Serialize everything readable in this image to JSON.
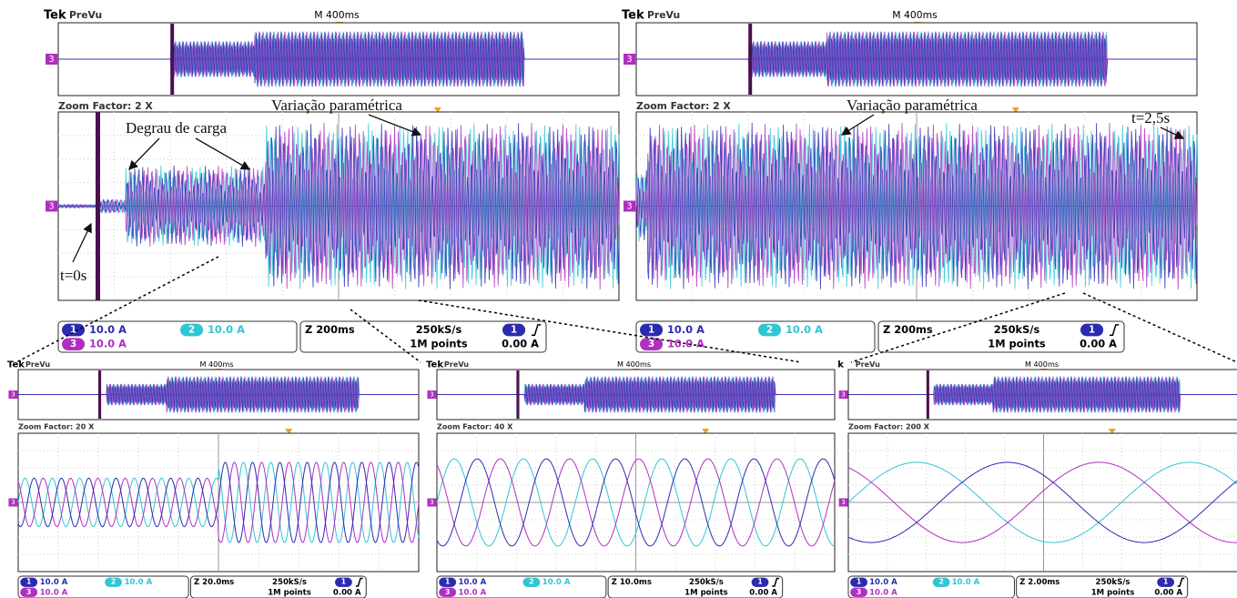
{
  "panels": [
    {
      "brand": "Tek",
      "preview": "PreVu",
      "timebase": "M 400ms",
      "zoom_factor": "Zoom Factor: 2 X",
      "channel_1_number": "1",
      "channel_1_scale": "10.0 A",
      "channel_2_number": "2",
      "channel_2_scale": "10.0 A",
      "channel_3_number": "3",
      "channel_3_scale": "10.0 A",
      "zoom_time": "Z 200ms",
      "sample_rate": "250kS/s",
      "record_length": "1M points",
      "trigger_level": "0.00 A"
    },
    {
      "brand": "Tek",
      "preview": "PreVu",
      "timebase": "M 400ms",
      "zoom_factor": "Zoom Factor: 2 X",
      "channel_1_number": "1",
      "channel_1_scale": "10.0 A",
      "channel_2_number": "2",
      "channel_2_scale": "10.0 A",
      "channel_3_number": "3",
      "channel_3_scale": "10.0 A",
      "zoom_time": "Z 200ms",
      "sample_rate": "250kS/s",
      "record_length": "1M points",
      "trigger_level": "0.00 A"
    },
    {
      "brand": "Tek",
      "preview": "PreVu",
      "timebase": "M 400ms",
      "zoom_factor": "Zoom Factor: 20 X",
      "channel_1_number": "1",
      "channel_1_scale": "10.0 A",
      "channel_2_number": "2",
      "channel_2_scale": "10.0 A",
      "channel_3_number": "3",
      "channel_3_scale": "10.0 A",
      "zoom_time": "Z 20.0ms",
      "sample_rate": "250kS/s",
      "record_length": "1M points",
      "trigger_level": "0.00 A"
    },
    {
      "brand": "Tek",
      "preview": "PreVu",
      "timebase": "M 400ms",
      "zoom_factor": "Zoom Factor: 40 X",
      "channel_1_number": "1",
      "channel_1_scale": "10.0 A",
      "channel_2_number": "2",
      "channel_2_scale": "10.0 A",
      "channel_3_number": "3",
      "channel_3_scale": "10.0 A",
      "zoom_time": "Z 10.0ms",
      "sample_rate": "250kS/s",
      "record_length": "1M points",
      "trigger_level": "0.00 A"
    },
    {
      "brand": "k",
      "preview": "PreVu",
      "timebase": "M 400ms",
      "zoom_factor": "Zoom Factor: 200 X",
      "channel_1_number": "1",
      "channel_1_scale": "10.0 A",
      "channel_2_number": "2",
      "channel_2_scale": "10.0 A",
      "channel_3_number": "3",
      "channel_3_scale": "10.0 A",
      "zoom_time": "Z 2.00ms",
      "sample_rate": "250kS/s",
      "record_length": "1M points",
      "trigger_level": "0.00 A"
    }
  ],
  "annotations": {
    "load_step": "Degrau de carga",
    "parametric_variation_left": "Variação paramétrica",
    "start_time": "t=0s",
    "parametric_variation_right": "Variação paramétrica",
    "end_time": "t=2,5s"
  }
}
